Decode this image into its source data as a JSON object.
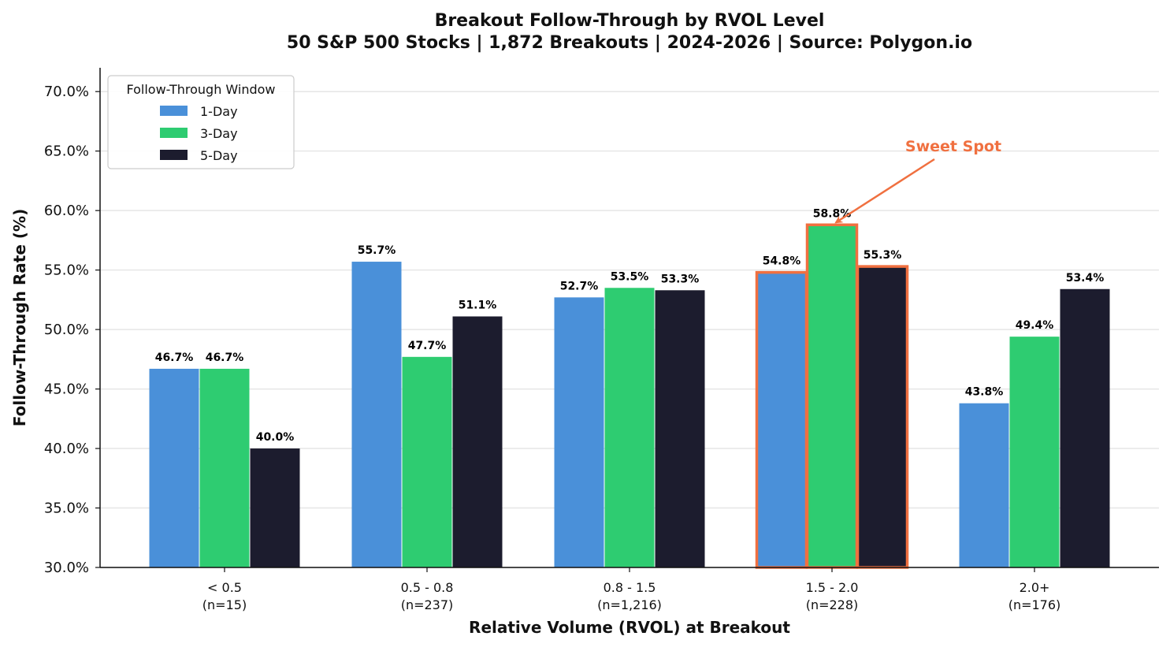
{
  "chart_data": {
    "type": "bar",
    "title": "Breakout Follow-Through by RVOL Level",
    "subtitle": "50 S&P 500 Stocks | 1,872 Breakouts | 2024-2026 | Source: Polygon.io",
    "xlabel": "Relative Volume (RVOL) at Breakout",
    "ylabel": "Follow-Through Rate (%)",
    "ylim": [
      30,
      72
    ],
    "yticks": [
      "30.0%",
      "35.0%",
      "40.0%",
      "45.0%",
      "50.0%",
      "55.0%",
      "60.0%",
      "65.0%",
      "70.0%"
    ],
    "ytick_values": [
      30,
      35,
      40,
      45,
      50,
      55,
      60,
      65,
      70
    ],
    "grid": "horizontal",
    "categories": [
      "< 0.5",
      "0.5 - 0.8",
      "0.8 - 1.5",
      "1.5 - 2.0",
      "2.0+"
    ],
    "category_counts": [
      "(n=15)",
      "(n=237)",
      "(n=1,216)",
      "(n=228)",
      "(n=176)"
    ],
    "series": [
      {
        "name": "1-Day",
        "color": "#4a90d9",
        "values": [
          46.7,
          55.7,
          52.7,
          54.8,
          43.8
        ],
        "labels": [
          "46.7%",
          "55.7%",
          "52.7%",
          "54.8%",
          "43.8%"
        ]
      },
      {
        "name": "3-Day",
        "color": "#2ecc71",
        "values": [
          46.7,
          47.7,
          53.5,
          58.8,
          49.4
        ],
        "labels": [
          "46.7%",
          "47.7%",
          "53.5%",
          "58.8%",
          "49.4%"
        ]
      },
      {
        "name": "5-Day",
        "color": "#1c1c2e",
        "values": [
          40.0,
          51.1,
          53.3,
          55.3,
          53.4
        ],
        "labels": [
          "40.0%",
          "51.1%",
          "53.3%",
          "55.3%",
          "53.4%"
        ]
      }
    ],
    "legend": {
      "title": "Follow-Through Window",
      "placement": "top-left"
    },
    "highlight": {
      "category": "1.5 - 2.0",
      "color": "#f07040"
    },
    "annotation": {
      "text": "Sweet Spot",
      "target_category": "1.5 - 2.0",
      "target_series": "3-Day",
      "color": "#f07040"
    }
  }
}
